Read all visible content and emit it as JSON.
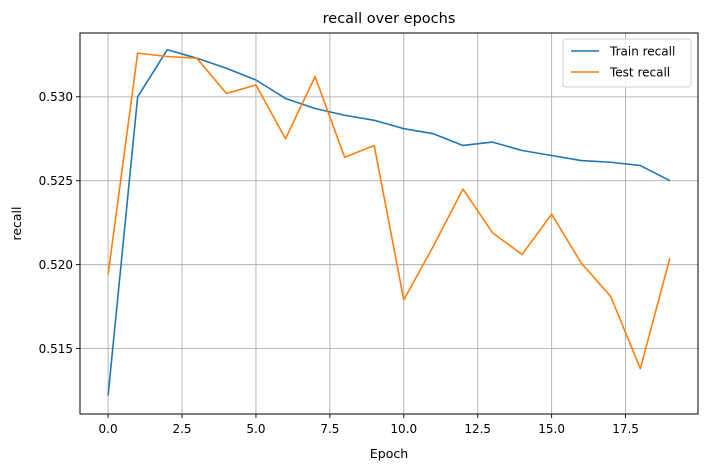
{
  "chart_data": {
    "type": "line",
    "title": "recall over epochs",
    "xlabel": "Epoch",
    "ylabel": "recall",
    "xlim": [
      -0.95,
      19.95
    ],
    "ylim": [
      0.5111,
      0.5338
    ],
    "xticks": [
      0.0,
      2.5,
      5.0,
      7.5,
      10.0,
      12.5,
      15.0,
      17.5
    ],
    "xtick_labels": [
      "0.0",
      "2.5",
      "5.0",
      "7.5",
      "10.0",
      "12.5",
      "15.0",
      "17.5"
    ],
    "yticks": [
      0.515,
      0.52,
      0.525,
      0.53
    ],
    "ytick_labels": [
      "0.515",
      "0.520",
      "0.525",
      "0.530"
    ],
    "grid": true,
    "legend_position": "top-right",
    "x": [
      0,
      1,
      2,
      3,
      4,
      5,
      6,
      7,
      8,
      9,
      10,
      11,
      12,
      13,
      14,
      15,
      16,
      17,
      18,
      19
    ],
    "series": [
      {
        "name": "Train recall",
        "color": "#1f77b4",
        "values": [
          0.5122,
          0.53,
          0.5328,
          0.5323,
          0.5317,
          0.531,
          0.5299,
          0.5293,
          0.5289,
          0.5286,
          0.5281,
          0.5278,
          0.5271,
          0.5273,
          0.5268,
          0.5265,
          0.5262,
          0.5261,
          0.5259,
          0.525
        ]
      },
      {
        "name": "Test recall",
        "color": "#ff7f0e",
        "values": [
          0.5194,
          0.5326,
          0.5324,
          0.5323,
          0.5302,
          0.5307,
          0.5275,
          0.5312,
          0.5264,
          0.5271,
          0.5179,
          0.5211,
          0.5245,
          0.5219,
          0.5206,
          0.523,
          0.5201,
          0.5181,
          0.5138,
          0.5204
        ]
      }
    ]
  }
}
